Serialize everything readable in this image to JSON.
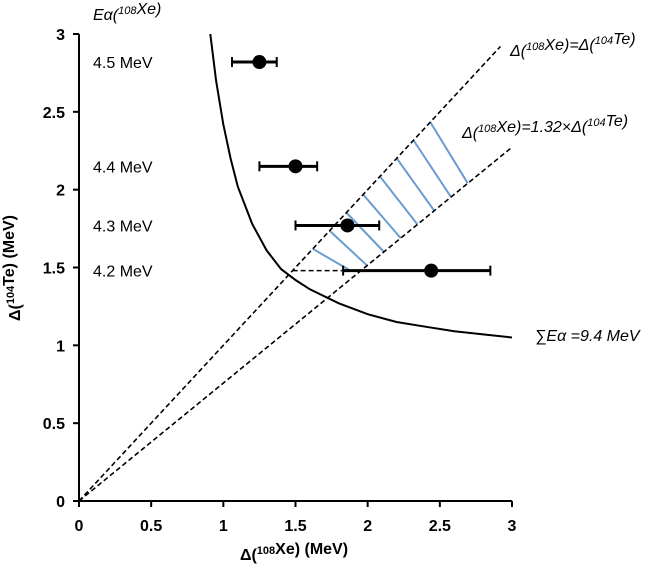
{
  "chart_data": {
    "type": "scatter",
    "xlabel": "Δ(108Xe) (MeV)",
    "ylabel": "Δ(104Te) (MeV)",
    "xlim": [
      0,
      3
    ],
    "ylim": [
      0,
      3
    ],
    "x_ticks": [
      "0",
      "0.5",
      "1",
      "1.5",
      "2",
      "2.5",
      "3"
    ],
    "y_ticks": [
      "0",
      "0.5",
      "1",
      "1.5",
      "2",
      "2.5",
      "3"
    ],
    "grid": false,
    "points": [
      {
        "label": "4.5 MeV",
        "x": 1.25,
        "y": 2.82,
        "xerr_low": 1.06,
        "xerr_high": 1.37
      },
      {
        "label": "4.4 MeV",
        "x": 1.5,
        "y": 2.15,
        "xerr_low": 1.25,
        "xerr_high": 1.65
      },
      {
        "label": "4.3 MeV",
        "x": 1.86,
        "y": 1.77,
        "xerr_low": 1.5,
        "xerr_high": 2.08
      },
      {
        "label": "4.2 MeV",
        "x": 2.44,
        "y": 1.48,
        "xerr_low": 1.83,
        "xerr_high": 2.85
      }
    ],
    "series_label_header": "Eα(108Xe)",
    "curve": {
      "label": "∑Eα =9.4 MeV",
      "x": [
        0.91,
        0.95,
        1.0,
        1.05,
        1.1,
        1.2,
        1.3,
        1.4,
        1.5,
        1.6,
        1.8,
        2.0,
        2.2,
        2.4,
        2.6,
        2.8,
        3.0
      ],
      "y": [
        3.0,
        2.7,
        2.42,
        2.2,
        2.02,
        1.78,
        1.61,
        1.49,
        1.42,
        1.36,
        1.27,
        1.2,
        1.15,
        1.12,
        1.09,
        1.07,
        1.05
      ]
    },
    "lines": [
      {
        "label": "Δ(108Xe)=Δ(104Te)",
        "slope": 1.0,
        "x_end": 2.92
      },
      {
        "label": "Δ(108Xe)=1.32×Δ(104Te)",
        "slope": 0.7576,
        "x_end": 3.0
      }
    ],
    "hatched_region": {
      "x_start": 1.5,
      "x_end": 2.55,
      "y_min": 1.48
    },
    "hatch_color": "#6a9cd0"
  }
}
